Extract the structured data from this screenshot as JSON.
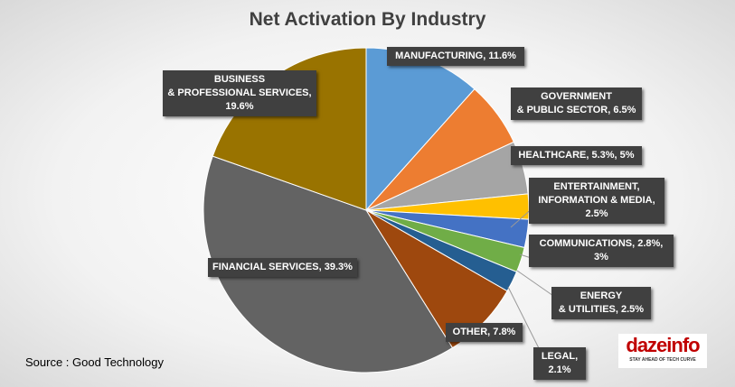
{
  "chart_data": {
    "type": "pie",
    "title": "Net Activation By Industry",
    "categories": [
      "MANUFACTURING,",
      "GOVERNMENT\n& PUBLIC SECTOR,",
      "HEALTHCARE,",
      "ENTERTAINMENT,\nINFORMATION & MEDIA,",
      "COMMUNICATIONS,",
      "ENERGY\n& UTILITIES,",
      "LEGAL,",
      "OTHER,",
      "FINANCIAL SERVICES,",
      "BUSINESS\n& PROFESSIONAL SERVICES,"
    ],
    "values": [
      11.6,
      6.5,
      5.3,
      2.5,
      2.8,
      2.5,
      2.1,
      7.8,
      39.3,
      19.6
    ],
    "value_labels": [
      "11.6%",
      "6.5%",
      "5.3%, 5%",
      "2.5%",
      "2.8%, 3%",
      "2.5%",
      "2.1%",
      "7.8%",
      "39.3%",
      "19.6%"
    ],
    "colors": [
      "#5b9bd5",
      "#ed7d31",
      "#a5a5a5",
      "#ffc000",
      "#4472c4",
      "#70ad47",
      "#255e91",
      "#9e480e",
      "#636363",
      "#997300"
    ],
    "source": "Source : Good Technology"
  },
  "logo": {
    "text": "dazeinfo",
    "tagline": "STAY AHEAD OF TECH CURVE"
  }
}
